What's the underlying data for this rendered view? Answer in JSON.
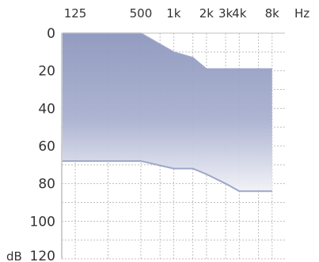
{
  "chart_data": {
    "type": "area",
    "title": "",
    "x_scale": "log",
    "x_unit": "Hz",
    "y_unit": "dB",
    "y_reversed": true,
    "x_ticks": [
      {
        "value": 125,
        "label": "125"
      },
      {
        "value": 500,
        "label": "500"
      },
      {
        "value": 1000,
        "label": "1k"
      },
      {
        "value": 2000,
        "label": "2k"
      },
      {
        "value": 3000,
        "label": "3k"
      },
      {
        "value": 4000,
        "label": "4k"
      },
      {
        "value": 8000,
        "label": "8k"
      }
    ],
    "x_minor_ticks": [
      250,
      750,
      1500,
      6000
    ],
    "xlim": [
      94,
      10500
    ],
    "y_ticks": [
      {
        "value": 0,
        "label": "0"
      },
      {
        "value": 20,
        "label": "20"
      },
      {
        "value": 40,
        "label": "40"
      },
      {
        "value": 60,
        "label": "60"
      },
      {
        "value": 80,
        "label": "80"
      },
      {
        "value": 100,
        "label": "100"
      },
      {
        "value": 120,
        "label": "120"
      }
    ],
    "ylim": [
      0,
      120
    ],
    "grid": true,
    "band": {
      "upper_boundary": [
        [
          125,
          0
        ],
        [
          500,
          0
        ],
        [
          1000,
          10
        ],
        [
          1500,
          13
        ],
        [
          2000,
          19
        ],
        [
          3000,
          19
        ],
        [
          4000,
          19
        ],
        [
          8000,
          19
        ]
      ],
      "lower_boundary": [
        [
          125,
          68
        ],
        [
          500,
          68
        ],
        [
          1000,
          72
        ],
        [
          1500,
          72
        ],
        [
          2000,
          75
        ],
        [
          3000,
          80
        ],
        [
          4000,
          84
        ],
        [
          8000,
          84
        ]
      ]
    },
    "colors": {
      "band_top": "#8d97bd",
      "band_bottom": "#f1f2f7",
      "band_edge": "#9ea6c8",
      "grid": "#bfbfbf",
      "text": "#333333"
    }
  }
}
